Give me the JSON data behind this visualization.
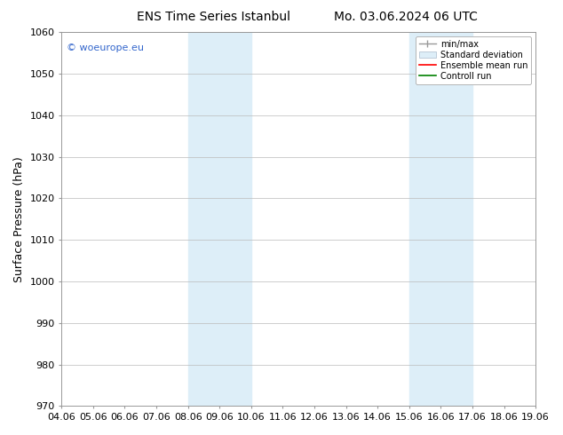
{
  "title_left": "ENS Time Series Istanbul",
  "title_right": "Mo. 03.06.2024 06 UTC",
  "ylabel": "Surface Pressure (hPa)",
  "ylim": [
    970,
    1060
  ],
  "yticks": [
    970,
    980,
    990,
    1000,
    1010,
    1020,
    1030,
    1040,
    1050,
    1060
  ],
  "xtick_labels": [
    "04.06",
    "05.06",
    "06.06",
    "07.06",
    "08.06",
    "09.06",
    "10.06",
    "11.06",
    "12.06",
    "13.06",
    "14.06",
    "15.06",
    "16.06",
    "17.06",
    "18.06",
    "19.06"
  ],
  "xtick_positions": [
    0,
    1,
    2,
    3,
    4,
    5,
    6,
    7,
    8,
    9,
    10,
    11,
    12,
    13,
    14,
    15
  ],
  "shaded_regions": [
    {
      "x_start": 4,
      "x_end": 6,
      "color": "#ddeef8"
    },
    {
      "x_start": 11,
      "x_end": 13,
      "color": "#ddeef8"
    }
  ],
  "watermark_text": "© woeurope.eu",
  "watermark_color": "#3366cc",
  "legend_labels": [
    "min/max",
    "Standard deviation",
    "Ensemble mean run",
    "Controll run"
  ],
  "background_color": "#ffffff",
  "plot_bg_color": "#ffffff",
  "grid_color": "#bbbbbb",
  "title_fontsize": 10,
  "axis_label_fontsize": 9,
  "tick_fontsize": 8
}
